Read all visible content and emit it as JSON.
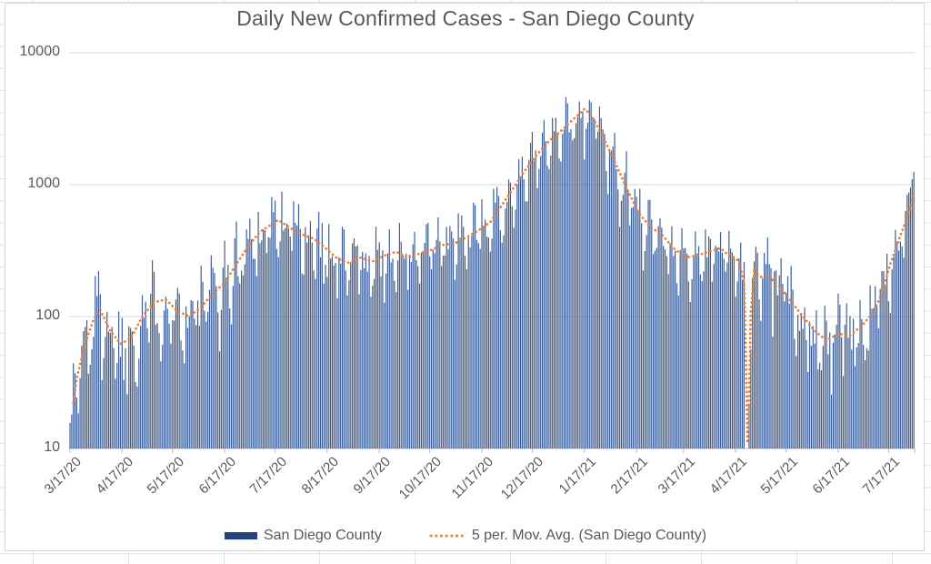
{
  "chart_data": {
    "type": "bar",
    "title": "Daily New Confirmed Cases - San Diego County",
    "xlabel": "",
    "ylabel": "",
    "y_axis": {
      "scale": "log",
      "range": [
        10,
        10000
      ],
      "ticks": [
        10,
        100,
        1000,
        10000
      ],
      "tick_labels": [
        "10",
        "100",
        "1000",
        "10000"
      ]
    },
    "x_axis": {
      "ticks": [
        {
          "label": "3/17/20",
          "day": 0
        },
        {
          "label": "4/17/20",
          "day": 31
        },
        {
          "label": "5/17/20",
          "day": 61
        },
        {
          "label": "6/17/20",
          "day": 92
        },
        {
          "label": "7/17/20",
          "day": 122
        },
        {
          "label": "8/17/20",
          "day": 153
        },
        {
          "label": "9/17/20",
          "day": 184
        },
        {
          "label": "10/17/20",
          "day": 214
        },
        {
          "label": "11/17/20",
          "day": 245
        },
        {
          "label": "12/17/20",
          "day": 275
        },
        {
          "label": "1/17/21",
          "day": 306
        },
        {
          "label": "2/17/21",
          "day": 337
        },
        {
          "label": "3/17/21",
          "day": 365
        },
        {
          "label": "4/17/21",
          "day": 396
        },
        {
          "label": "5/17/21",
          "day": 426
        },
        {
          "label": "6/17/21",
          "day": 457
        },
        {
          "label": "7/17/21",
          "day": 487
        }
      ]
    },
    "days_total": 503,
    "legend": [
      {
        "label": "San Diego County",
        "type": "bar",
        "color": "#21427c"
      },
      {
        "label": "5 per. Mov. Avg. (San Diego County)",
        "type": "dotted-line",
        "color": "#ed7d31"
      }
    ],
    "series": [
      {
        "name": "San Diego County",
        "type": "bar",
        "color": "#3b5c95",
        "generated_from": "moving_average_anchors x weekday_log_offsets x jitter",
        "overrides": {
          "18": 148,
          "148": 620,
          "500": 950,
          "501": 1100,
          "502": 1250
        },
        "zero_days": [
          402,
          403
        ],
        "value_clamp": [
          10,
          4600
        ]
      },
      {
        "name": "5 per. Mov. Avg. (San Diego County)",
        "type": "dotted-line",
        "color": "#ed7d31",
        "anchors": [
          [
            2,
            22
          ],
          [
            4,
            34
          ],
          [
            9,
            62
          ],
          [
            14,
            95
          ],
          [
            18,
            112
          ],
          [
            24,
            78
          ],
          [
            30,
            62
          ],
          [
            36,
            68
          ],
          [
            43,
            100
          ],
          [
            50,
            128
          ],
          [
            57,
            135
          ],
          [
            64,
            110
          ],
          [
            71,
            100
          ],
          [
            78,
            118
          ],
          [
            85,
            150
          ],
          [
            92,
            180
          ],
          [
            99,
            250
          ],
          [
            106,
            340
          ],
          [
            113,
            440
          ],
          [
            120,
            500
          ],
          [
            124,
            540
          ],
          [
            131,
            470
          ],
          [
            138,
            420
          ],
          [
            145,
            390
          ],
          [
            152,
            330
          ],
          [
            159,
            275
          ],
          [
            166,
            255
          ],
          [
            173,
            280
          ],
          [
            180,
            262
          ],
          [
            187,
            290
          ],
          [
            194,
            310
          ],
          [
            201,
            280
          ],
          [
            208,
            300
          ],
          [
            215,
            320
          ],
          [
            222,
            350
          ],
          [
            229,
            360
          ],
          [
            236,
            400
          ],
          [
            243,
            450
          ],
          [
            250,
            520
          ],
          [
            257,
            700
          ],
          [
            264,
            950
          ],
          [
            271,
            1300
          ],
          [
            278,
            1700
          ],
          [
            285,
            2150
          ],
          [
            292,
            2550
          ],
          [
            299,
            3100
          ],
          [
            306,
            3750
          ],
          [
            310,
            3400
          ],
          [
            317,
            2300
          ],
          [
            324,
            1500
          ],
          [
            331,
            950
          ],
          [
            338,
            620
          ],
          [
            345,
            480
          ],
          [
            352,
            420
          ],
          [
            359,
            330
          ],
          [
            366,
            280
          ],
          [
            373,
            290
          ],
          [
            380,
            310
          ],
          [
            387,
            330
          ],
          [
            392,
            290
          ],
          [
            398,
            265
          ],
          [
            401,
            180
          ],
          [
            402,
            60
          ],
          [
            403,
            11
          ],
          [
            404,
            25
          ],
          [
            405,
            110
          ],
          [
            407,
            220
          ],
          [
            411,
            200
          ],
          [
            415,
            205
          ],
          [
            422,
            170
          ],
          [
            429,
            130
          ],
          [
            436,
            100
          ],
          [
            443,
            78
          ],
          [
            450,
            66
          ],
          [
            457,
            74
          ],
          [
            464,
            72
          ],
          [
            471,
            85
          ],
          [
            478,
            108
          ],
          [
            483,
            150
          ],
          [
            488,
            250
          ],
          [
            493,
            380
          ],
          [
            497,
            520
          ],
          [
            500,
            680
          ],
          [
            502,
            880
          ]
        ]
      }
    ],
    "generator": {
      "seed": 1337,
      "first_day_weekday": 2,
      "weekday_log_offsets": [
        -0.24,
        -0.12,
        0.06,
        0.12,
        0.1,
        0.04,
        -0.1
      ],
      "jitter_amplitude_anchors": [
        [
          0,
          0.33
        ],
        [
          50,
          0.3
        ],
        [
          100,
          0.24
        ],
        [
          170,
          0.2
        ],
        [
          240,
          0.17
        ],
        [
          290,
          0.14
        ],
        [
          330,
          0.18
        ],
        [
          380,
          0.16
        ],
        [
          400,
          0.2
        ],
        [
          470,
          0.22
        ],
        [
          503,
          0.12
        ]
      ]
    },
    "grid": {
      "color": "#d9d9d9",
      "axis_color": "#bfbfbf"
    },
    "legend_position": "bottom-center"
  }
}
